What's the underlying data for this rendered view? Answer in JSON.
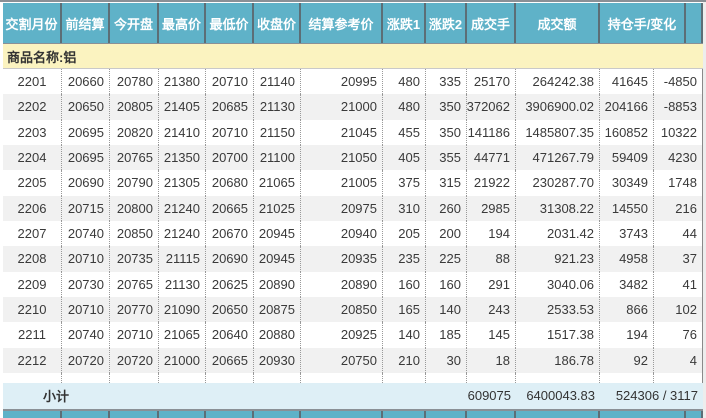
{
  "table": {
    "product_label": "商品名称:铝",
    "columns": [
      "交割月份",
      "前结算",
      "今开盘",
      "最高价",
      "最低价",
      "收盘价",
      "结算参考价",
      "涨跌1",
      "涨跌2",
      "成交手",
      "成交额",
      "持仓手/变化",
      ""
    ],
    "rows": [
      [
        "2201",
        "20660",
        "20780",
        "21380",
        "20710",
        "21140",
        "20995",
        "480",
        "335",
        "25170",
        "264242.38",
        "41645",
        "-4850"
      ],
      [
        "2202",
        "20650",
        "20805",
        "21405",
        "20685",
        "21130",
        "21000",
        "480",
        "350",
        "372062",
        "3906900.02",
        "204166",
        "-8853"
      ],
      [
        "2203",
        "20695",
        "20820",
        "21410",
        "20710",
        "21150",
        "21045",
        "455",
        "350",
        "141186",
        "1485807.35",
        "160852",
        "10322"
      ],
      [
        "2204",
        "20695",
        "20765",
        "21350",
        "20700",
        "21100",
        "21050",
        "405",
        "355",
        "44771",
        "471267.79",
        "59409",
        "4230"
      ],
      [
        "2205",
        "20690",
        "20790",
        "21305",
        "20680",
        "21065",
        "21005",
        "375",
        "315",
        "21922",
        "230287.70",
        "30349",
        "1748"
      ],
      [
        "2206",
        "20715",
        "20800",
        "21240",
        "20665",
        "21025",
        "20975",
        "310",
        "260",
        "2985",
        "31308.22",
        "14550",
        "216"
      ],
      [
        "2207",
        "20740",
        "20850",
        "21240",
        "20670",
        "20945",
        "20940",
        "205",
        "200",
        "194",
        "2031.42",
        "3743",
        "44"
      ],
      [
        "2208",
        "20710",
        "20735",
        "21115",
        "20690",
        "20945",
        "20935",
        "235",
        "225",
        "88",
        "921.23",
        "4958",
        "37"
      ],
      [
        "2209",
        "20730",
        "20765",
        "21130",
        "20625",
        "20890",
        "20890",
        "160",
        "160",
        "291",
        "3040.06",
        "3482",
        "41"
      ],
      [
        "2210",
        "20710",
        "20770",
        "21090",
        "20650",
        "20875",
        "20850",
        "165",
        "140",
        "243",
        "2533.53",
        "866",
        "102"
      ],
      [
        "2211",
        "20740",
        "20710",
        "21065",
        "20640",
        "20880",
        "20925",
        "140",
        "185",
        "145",
        "1517.38",
        "194",
        "76"
      ],
      [
        "2212",
        "20720",
        "20720",
        "21000",
        "20665",
        "20930",
        "20750",
        "210",
        "30",
        "18",
        "186.78",
        "92",
        "4"
      ]
    ],
    "subtotal": {
      "label": "小计",
      "volume": "609075",
      "turnover": "6400043.83",
      "open_interest": "524306 / 3117"
    }
  },
  "colors": {
    "header_bg": "#5FB2C8",
    "header_divider": "#5C6E76",
    "header_text": "#FFFFFF",
    "product_row_bg": "#FBF3C0",
    "row_alt_bg": "#F1F1F1",
    "subtotal_bg": "#DEEFF6",
    "grid_line": "#8A9096",
    "body_text": "#3A3A3A"
  }
}
